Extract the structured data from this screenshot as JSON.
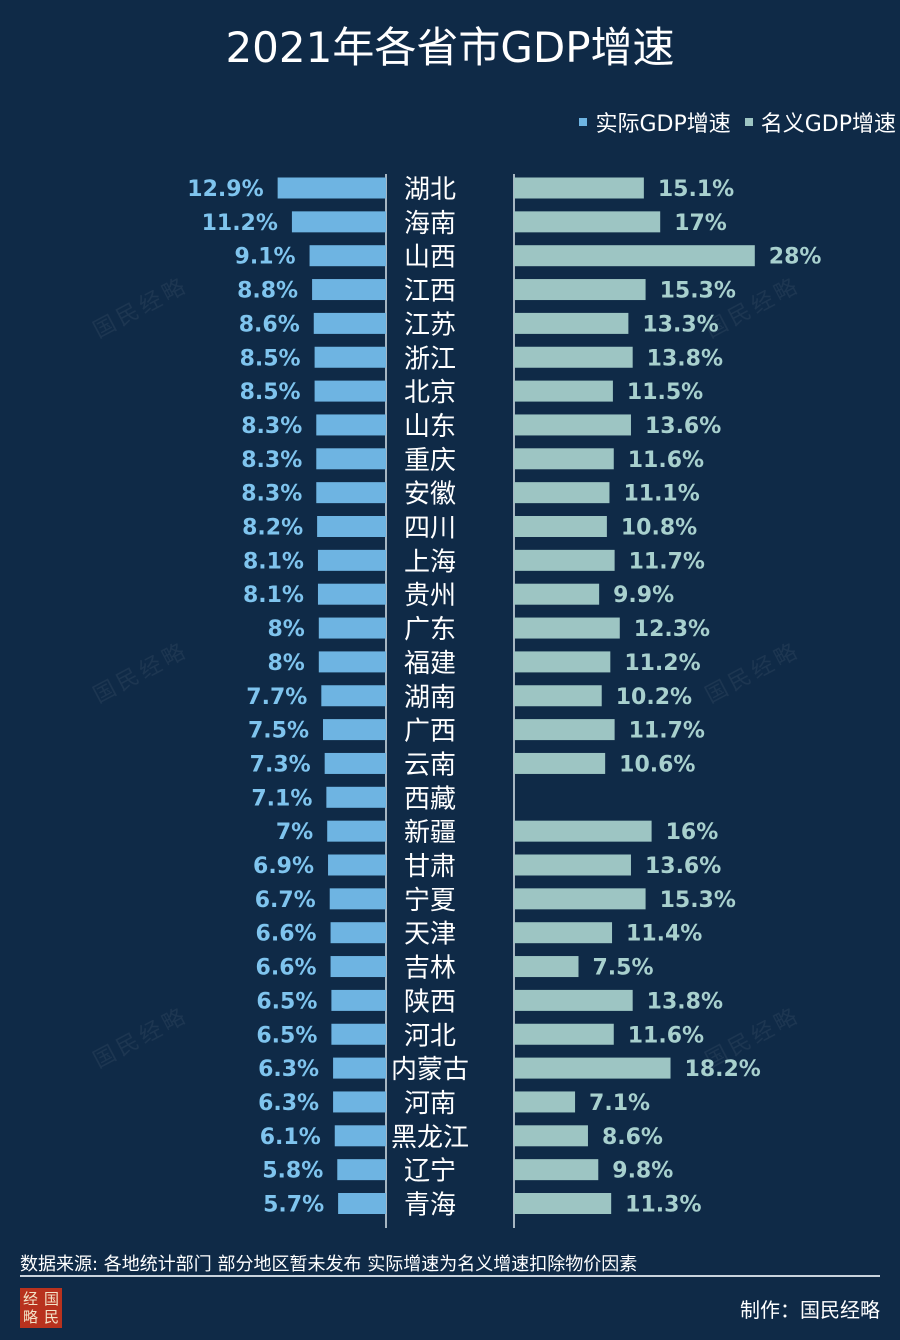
{
  "title": "2021年各省市GDP增速",
  "legend": [
    {
      "label": "实际GDP增速",
      "color": "#6eb4e2"
    },
    {
      "label": "名义GDP增速",
      "color": "#9dc5c3"
    }
  ],
  "colors": {
    "background": "#0f2a47",
    "real": "#6eb4e2",
    "nominal": "#9dc5c3",
    "real_label": "#7fc4ee",
    "nominal_label": "#a8d0ce",
    "axis": "#d9e4ec"
  },
  "chart_data": {
    "type": "bar",
    "categories": [
      "湖北",
      "海南",
      "山西",
      "江西",
      "江苏",
      "浙江",
      "北京",
      "山东",
      "重庆",
      "安徽",
      "四川",
      "上海",
      "贵州",
      "广东",
      "福建",
      "湖南",
      "广西",
      "云南",
      "西藏",
      "新疆",
      "甘肃",
      "宁夏",
      "天津",
      "吉林",
      "陕西",
      "河北",
      "内蒙古",
      "河南",
      "黑龙江",
      "辽宁",
      "青海"
    ],
    "series": [
      {
        "name": "实际GDP增速",
        "values": [
          12.9,
          11.2,
          9.1,
          8.8,
          8.6,
          8.5,
          8.5,
          8.3,
          8.3,
          8.3,
          8.2,
          8.1,
          8.1,
          8,
          8,
          7.7,
          7.5,
          7.3,
          7.1,
          7,
          6.9,
          6.7,
          6.6,
          6.6,
          6.5,
          6.5,
          6.3,
          6.3,
          6.1,
          5.8,
          5.7
        ]
      },
      {
        "name": "名义GDP增速",
        "values": [
          15.1,
          17,
          28,
          15.3,
          13.3,
          13.8,
          11.5,
          13.6,
          11.6,
          11.1,
          10.8,
          11.7,
          9.9,
          12.3,
          11.2,
          10.2,
          11.7,
          10.6,
          null,
          16,
          13.6,
          15.3,
          11.4,
          7.5,
          13.8,
          11.6,
          18.2,
          7.1,
          8.6,
          9.8,
          11.3
        ]
      }
    ],
    "real_labels": [
      "12.9%",
      "11.2%",
      "9.1%",
      "8.8%",
      "8.6%",
      "8.5%",
      "8.5%",
      "8.3%",
      "8.3%",
      "8.3%",
      "8.2%",
      "8.1%",
      "8.1%",
      "8%",
      "8%",
      "7.7%",
      "7.5%",
      "7.3%",
      "7.1%",
      "7%",
      "6.9%",
      "6.7%",
      "6.6%",
      "6.6%",
      "6.5%",
      "6.5%",
      "6.3%",
      "6.3%",
      "6.1%",
      "5.8%",
      "5.7%"
    ],
    "nominal_labels": [
      "15.1%",
      "17%",
      "28%",
      "15.3%",
      "13.3%",
      "13.8%",
      "11.5%",
      "13.6%",
      "11.6%",
      "11.1%",
      "10.8%",
      "11.7%",
      "9.9%",
      "12.3%",
      "11.2%",
      "10.2%",
      "11.7%",
      "10.6%",
      "",
      "16%",
      "13.6%",
      "15.3%",
      "11.4%",
      "7.5%",
      "13.8%",
      "11.6%",
      "18.2%",
      "7.1%",
      "8.6%",
      "9.8%",
      "11.3%"
    ],
    "legend_position": "top-right"
  },
  "watermark": "国民经略",
  "source": "数据来源: 各地统计部门 部分地区暂未发布  实际增速为名义增速扣除物价因素",
  "credit": "制作：国民经略",
  "logo_chars": [
    "经",
    "国",
    "略",
    "民"
  ]
}
